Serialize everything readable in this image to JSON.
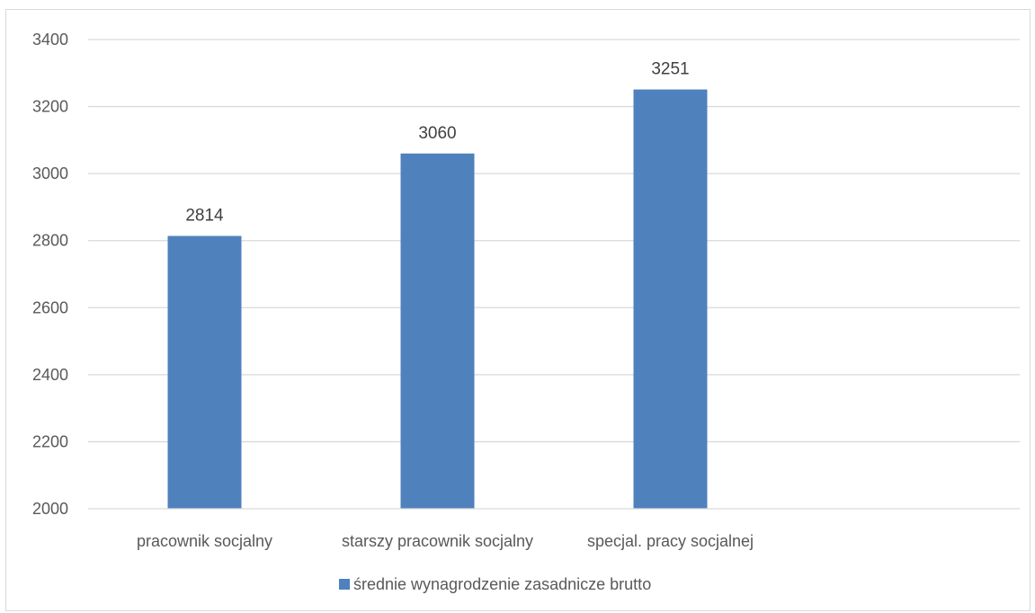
{
  "chart_data": {
    "type": "bar",
    "title": "",
    "xlabel": "",
    "ylabel": "",
    "categories": [
      "pracownik socjalny",
      "starszy pracownik socjalny",
      "specjal. pracy socjalnej"
    ],
    "series": [
      {
        "name": "średnie wynagrodzenie zasadnicze brutto",
        "values": [
          2814,
          3060,
          3251
        ],
        "color": "#4f81bd"
      }
    ],
    "ylim": [
      2000,
      3400
    ],
    "yticks": [
      2000,
      2200,
      2400,
      2600,
      2800,
      3000,
      3200,
      3400
    ],
    "grid": true,
    "legend_position": "bottom",
    "data_labels": true
  }
}
